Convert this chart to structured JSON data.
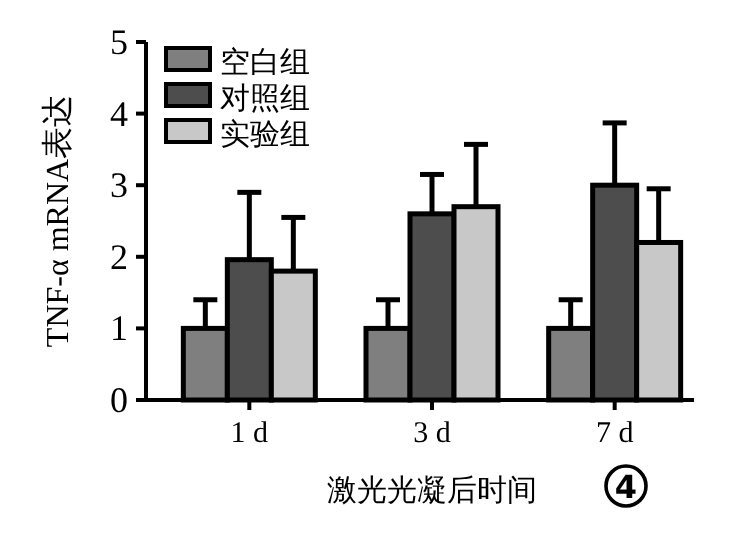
{
  "chart_data": {
    "type": "bar",
    "xlabel": "激光光凝后时间",
    "ylabel": "TNF-α mRNA表达",
    "categories": [
      "1 d",
      "3 d",
      "7 d"
    ],
    "series": [
      {
        "name": "空白组",
        "color": "#7f7f7f",
        "values": [
          1.0,
          1.0,
          1.0
        ],
        "errors": [
          [
            1.0,
            1.4
          ],
          [
            1.0,
            1.4
          ],
          [
            1.0,
            1.4
          ]
        ]
      },
      {
        "name": "对照组",
        "color": "#4d4d4d",
        "values": [
          1.96,
          2.6,
          3.0
        ],
        "errors": [
          [
            1.96,
            2.9
          ],
          [
            2.6,
            3.15
          ],
          [
            3.0,
            3.87
          ]
        ]
      },
      {
        "name": "实验组",
        "color": "#c8c8c8",
        "values": [
          1.8,
          2.7,
          2.2
        ],
        "errors": [
          [
            1.8,
            2.55
          ],
          [
            2.7,
            3.57
          ],
          [
            2.2,
            2.95
          ]
        ]
      }
    ],
    "ylim": [
      0,
      5
    ],
    "yticks": [
      0,
      1,
      2,
      3,
      4,
      5
    ],
    "grid": false,
    "legend": "top left",
    "annotations": [
      "4"
    ]
  }
}
